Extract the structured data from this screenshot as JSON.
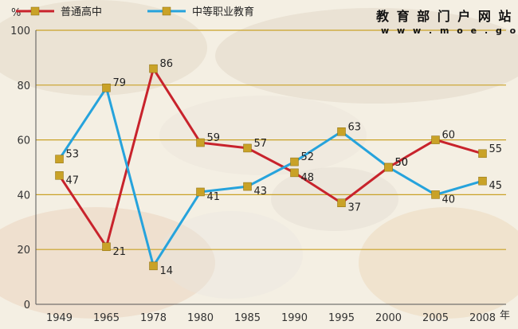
{
  "site": {
    "title": "教 育 部 门 户 网 站",
    "url": "w w w . m o e . g o v . c n"
  },
  "chart_data": {
    "type": "line",
    "categories": [
      "1949",
      "1965",
      "1978",
      "1980",
      "1985",
      "1990",
      "1995",
      "2000",
      "2005",
      "2008"
    ],
    "ylim": [
      0,
      100
    ],
    "y_ticks": [
      0,
      20,
      40,
      60,
      80,
      100
    ],
    "ylabel": "%",
    "xlabel": "年",
    "grid": true,
    "legend_position": "top-left",
    "series": [
      {
        "name": "普通高中",
        "color": "#c8232c",
        "values": [
          47,
          21,
          86,
          59,
          57,
          48,
          37,
          50,
          60,
          55
        ]
      },
      {
        "name": "中等职业教育",
        "color": "#26a3dc",
        "values": [
          53,
          79,
          14,
          41,
          43,
          52,
          63,
          50,
          40,
          45
        ]
      }
    ],
    "marker_color": "#c9a227"
  }
}
